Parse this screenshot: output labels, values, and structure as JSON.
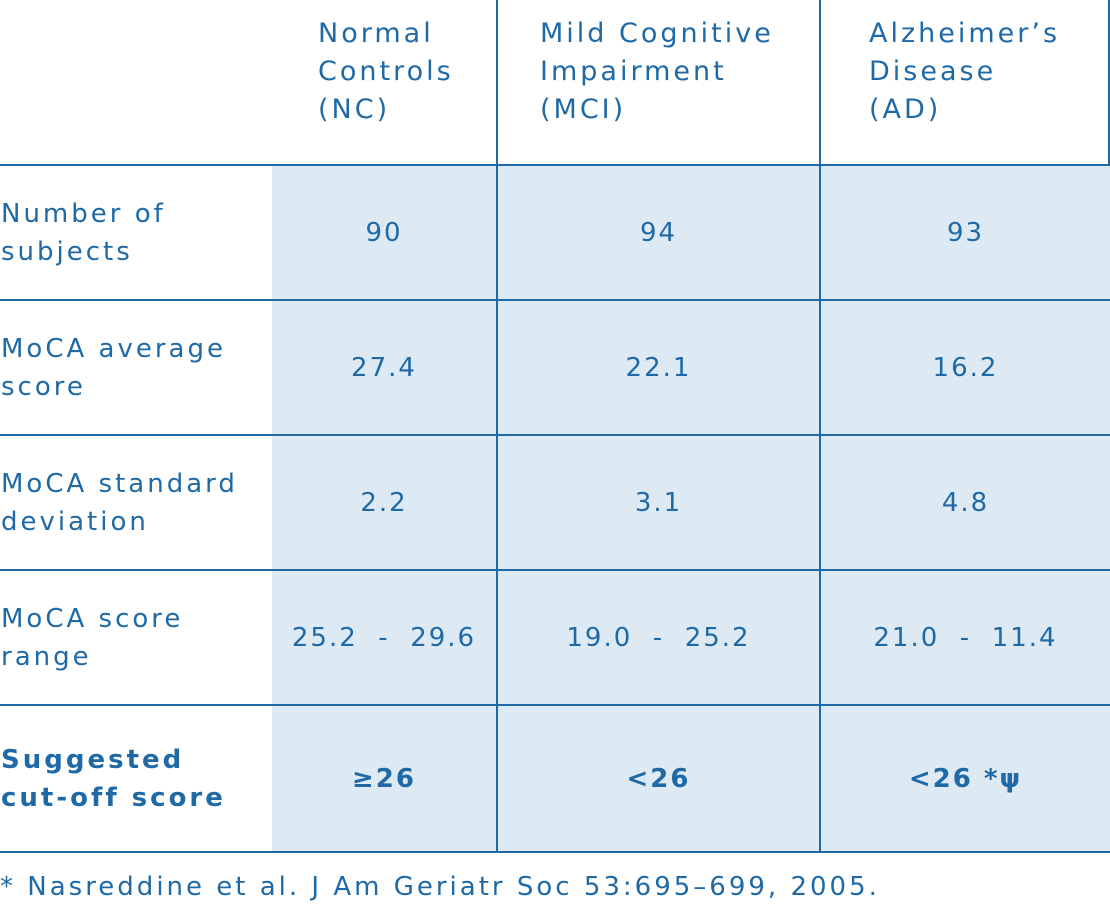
{
  "columns": [
    "Normal\nControls\n(NC)",
    "Mild Cognitive\nImpairment\n(MCI)",
    "Alzheimer’s\nDisease\n(AD)"
  ],
  "rows": [
    {
      "label": "Number of\nsubjects",
      "values": [
        "90",
        "94",
        "93"
      ]
    },
    {
      "label": "MoCA average\nscore",
      "values": [
        "27.4",
        "22.1",
        "16.2"
      ]
    },
    {
      "label": "MoCA standard\ndeviation",
      "values": [
        "2.2",
        "3.1",
        "4.8"
      ]
    },
    {
      "label": "MoCA score\nrange",
      "values": [
        "25.2  -  29.6",
        "19.0  -  25.2",
        "21.0  -  11.4"
      ]
    },
    {
      "label": "Suggested\ncut-off score",
      "values": [
        "≥26",
        "<26",
        "<26 *ψ"
      ]
    }
  ],
  "footnote": "* Nasreddine et al. J Am Geriatr Soc 53:695–699, 2005.",
  "colors": {
    "text": "#1f6aa6",
    "shade": "#dde9f3"
  }
}
